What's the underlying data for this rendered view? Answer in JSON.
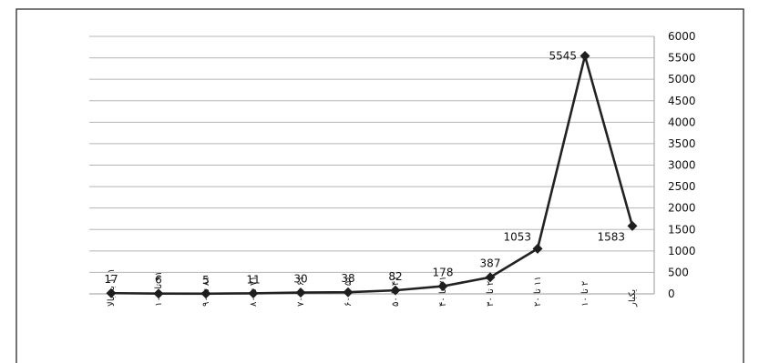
{
  "chart_data": {
    "type": "line",
    "title": "",
    "xlabel": "",
    "ylabel": "",
    "categories": [
      "۱۰۱ به بالا",
      "۹۱ تا ۱۰۰",
      "۸۱ تا ۹۰",
      "۷۱ تا ۸۰",
      "۶۱ تا ۷۰",
      "۵۱ تا ۶۰",
      "۴۱ تا ۵۰",
      "۳۱ تا ۴۰",
      "۲۱ تا ۳۰",
      "۱۱ تا ۲۰",
      "۲ تا ۱۰",
      "یکبار"
    ],
    "values": [
      17,
      6,
      5,
      11,
      30,
      38,
      82,
      178,
      387,
      1053,
      5545,
      1583
    ],
    "data_labels": [
      "17",
      "6",
      "5",
      "11",
      "30",
      "38",
      "82",
      "178",
      "387",
      "1053",
      "5545",
      "1583"
    ],
    "ylim": [
      0,
      6000
    ],
    "yticks": [
      "0",
      "500",
      "1000",
      "1500",
      "2000",
      "2500",
      "3000",
      "3500",
      "4000",
      "4500",
      "5000",
      "5500",
      "6000"
    ],
    "y_axis_side": "right",
    "grid": true,
    "legend": "none",
    "marker": "diamond",
    "line_color": "#222222"
  }
}
